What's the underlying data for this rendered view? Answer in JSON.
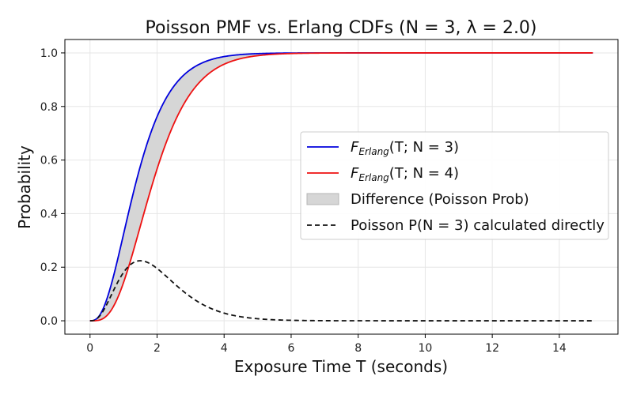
{
  "chart_data": {
    "type": "line",
    "title": "Poisson PMF vs. Erlang CDFs (N = 3, λ = 2.0)",
    "xlabel": "Exposure Time T (seconds)",
    "ylabel": "Probability",
    "xlim": [
      -0.75,
      15.75
    ],
    "ylim": [
      -0.05,
      1.05
    ],
    "xticks": [
      0,
      2,
      4,
      6,
      8,
      10,
      12,
      14
    ],
    "yticks": [
      0.0,
      0.2,
      0.4,
      0.6,
      0.8,
      1.0
    ],
    "xtick_labels": [
      "0",
      "2",
      "4",
      "6",
      "8",
      "10",
      "12",
      "14"
    ],
    "ytick_labels": [
      "0.0",
      "0.2",
      "0.4",
      "0.6",
      "0.8",
      "1.0"
    ],
    "grid": true,
    "legend_position": "center-right",
    "params": {
      "N": 3,
      "lambda": 2.0,
      "t_min": 0,
      "t_max": 15
    },
    "series": [
      {
        "name": "F_Erlang(T; N = 3)",
        "color": "#0000dd",
        "style": "solid",
        "kind": "erlang_cdf",
        "k": 3
      },
      {
        "name": "F_Erlang(T; N = 4)",
        "color": "#ee1111",
        "style": "solid",
        "kind": "erlang_cdf",
        "k": 4
      },
      {
        "name": "Difference (Poisson Prob)",
        "color": "#d6d6d6",
        "style": "fill",
        "kind": "fill_between"
      },
      {
        "name": "Poisson P(N = 3) calculated directly",
        "color": "#111111",
        "style": "dashed",
        "kind": "poisson_pmf",
        "k": 3
      }
    ],
    "sample_points": {
      "T": [
        0,
        0.5,
        1,
        1.5,
        2,
        3,
        4,
        6,
        10,
        15
      ],
      "F_N3": [
        0.0,
        0.08,
        0.323,
        0.577,
        0.762,
        0.938,
        0.986,
        0.9995,
        1.0,
        1.0
      ],
      "F_N4": [
        0.0,
        0.019,
        0.143,
        0.353,
        0.567,
        0.849,
        0.958,
        0.9977,
        1.0,
        1.0
      ],
      "P_N3": [
        0.0,
        0.061,
        0.18,
        0.224,
        0.195,
        0.089,
        0.029,
        0.002,
        0.0,
        0.0
      ]
    }
  },
  "legend": {
    "entry1_main": "F",
    "entry1_sub": "Erlang",
    "entry1_rest": "(T; N = 3)",
    "entry2_main": "F",
    "entry2_sub": "Erlang",
    "entry2_rest": "(T; N = 4)",
    "entry3": "Difference (Poisson Prob)",
    "entry4": "Poisson P(N = 3) calculated directly"
  }
}
